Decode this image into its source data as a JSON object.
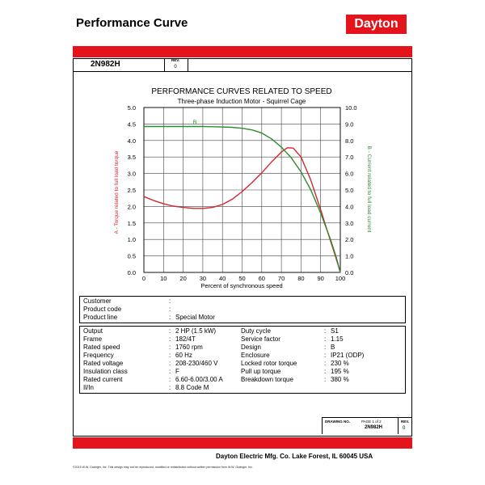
{
  "header": {
    "title": "Performance Curve",
    "logo_text": "Dayton",
    "brand_color": "#e3141b"
  },
  "sheet": {
    "model": "2N982H",
    "rev_label": "REV.",
    "rev_value": "0"
  },
  "chart_data": {
    "type": "line",
    "title": "PERFORMANCE CURVES RELATED TO SPEED",
    "subtitle": "Three-phase Induction Motor - Squirrel Cage",
    "xlabel": "Percent of synchronous speed",
    "ylabel_left": "A - Torque related to full load torque",
    "ylabel_right": "B - Current related to full load current",
    "xlim": [
      0,
      100
    ],
    "ylim_left": [
      0,
      5
    ],
    "ylim_right": [
      0,
      10
    ],
    "x_ticks": [
      "0",
      "10",
      "20",
      "30",
      "40",
      "50",
      "60",
      "70",
      "80",
      "90",
      "100"
    ],
    "y_left_ticks": [
      "0.0",
      "0.5",
      "1.0",
      "1.5",
      "2.0",
      "2.5",
      "3.0",
      "3.5",
      "4.0",
      "4.5",
      "5.0"
    ],
    "y_right_ticks": [
      "0.0",
      "1.0",
      "2.0",
      "3.0",
      "4.0",
      "5.0",
      "6.0",
      "7.0",
      "8.0",
      "9.0",
      "10.0"
    ],
    "grid": true,
    "series": [
      {
        "name": "A",
        "axis": "left",
        "color": "#d0282e",
        "x": [
          0,
          5,
          10,
          15,
          20,
          25,
          30,
          35,
          40,
          45,
          50,
          55,
          60,
          65,
          70,
          73,
          76,
          80,
          85,
          90,
          95,
          98,
          100
        ],
        "y": [
          2.3,
          2.18,
          2.08,
          2.01,
          1.97,
          1.94,
          1.94,
          1.97,
          2.06,
          2.22,
          2.45,
          2.72,
          3.02,
          3.35,
          3.65,
          3.78,
          3.77,
          3.5,
          2.8,
          1.9,
          0.95,
          0.4,
          0.0
        ]
      },
      {
        "name": "B",
        "axis": "right",
        "color": "#2e8b2e",
        "label_at_x": 25,
        "x": [
          0,
          10,
          20,
          30,
          38,
          45,
          50,
          55,
          60,
          65,
          70,
          75,
          80,
          85,
          90,
          95,
          98,
          100
        ],
        "y": [
          8.85,
          8.85,
          8.85,
          8.85,
          8.83,
          8.8,
          8.74,
          8.64,
          8.45,
          8.1,
          7.6,
          6.95,
          6.1,
          5.0,
          3.6,
          2.0,
          0.9,
          0.0
        ]
      }
    ]
  },
  "customer_table": {
    "rows": [
      {
        "label": "Customer",
        "sep": ":",
        "value": ""
      },
      {
        "label": "Product code",
        "sep": ":",
        "value": ""
      },
      {
        "label": "Product line",
        "sep": ":",
        "value": "Special Motor"
      }
    ]
  },
  "spec_table": {
    "rows": [
      {
        "label": "Output",
        "sep": ":",
        "value": "2 HP (1.5 kW)",
        "label2": "Duty cycle",
        "sep2": ":",
        "value2": "S1"
      },
      {
        "label": "Frame",
        "sep": ":",
        "value": "182/4T",
        "label2": "Service factor",
        "sep2": ":",
        "value2": "1.15"
      },
      {
        "label": "Rated speed",
        "sep": ":",
        "value": "1760 rpm",
        "label2": "Design",
        "sep2": ":",
        "value2": "B"
      },
      {
        "label": "Frequency",
        "sep": ":",
        "value": "60 Hz",
        "label2": "Enclosure",
        "sep2": ":",
        "value2": "IP21 (ODP)"
      },
      {
        "label": "Rated voltage",
        "sep": ":",
        "value": "208-230/460 V",
        "label2": "Locked rotor torque",
        "sep2": ":",
        "value2": "230 %"
      },
      {
        "label": "Insulation class",
        "sep": ":",
        "value": "F",
        "label2": "Pull up torque",
        "sep2": ":",
        "value2": "195 %"
      },
      {
        "label": "Rated current",
        "sep": ":",
        "value": "6.60-6.00/3.00 A",
        "label2": "Breakdown torque",
        "sep2": ":",
        "value2": "380 %"
      },
      {
        "label": "Il/In",
        "sep": ":",
        "value": "8.8   Code M",
        "label2": "",
        "sep2": "",
        "value2": ""
      }
    ]
  },
  "footer_box": {
    "drawing_no_label": "DRAWING NO.",
    "page_label": "PAGE 1 of 2",
    "drawing_no_value": "2N982H",
    "rev_label": "REV.",
    "rev_value": "0"
  },
  "footer": {
    "company": "Dayton Electric Mfg. Co.  Lake Forest, IL  60045  USA",
    "copyright": "©2015 W.W. Grainger, Inc.   This design may not be reproduced, modified or redistributed without written permission from W.W. Grainger, Inc."
  }
}
